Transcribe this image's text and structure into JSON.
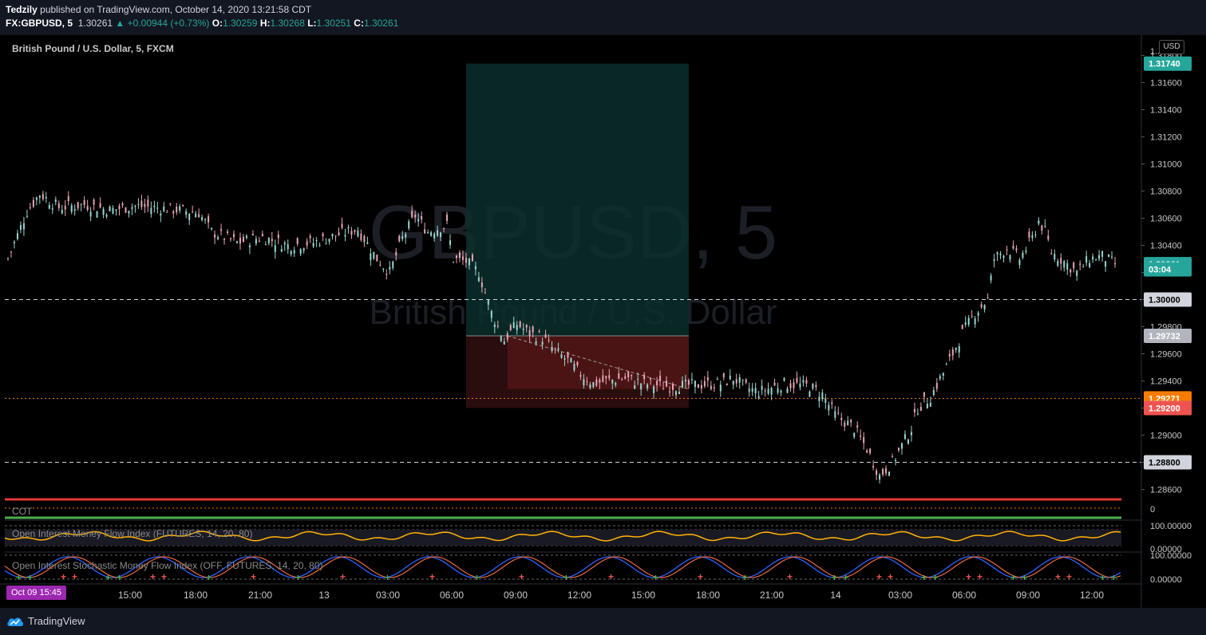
{
  "header": {
    "author": "Tedzily",
    "published_text": "published on TradingView.com, October 14, 2020 13:21:58 CDT",
    "symbol": "FX:GBPUSD, 5",
    "last": "1.30261",
    "change": "▲ +0.00944 (+0.73%)",
    "o_label": "O:",
    "o": "1.30259",
    "h_label": "H:",
    "h": "1.30268",
    "l_label": "L:",
    "l": "1.30251",
    "c_label": "C:",
    "c": "1.30261"
  },
  "legend": {
    "title": "British Pound / U.S. Dollar, 5, FXCM"
  },
  "watermark": {
    "symbol": "GBPUSD, 5",
    "name": "British Pound / U.S. Dollar"
  },
  "currency": "USD",
  "axis_badges": [
    {
      "label": "1.31740",
      "color": "#26a69a",
      "value": 1.3174
    },
    {
      "label": "1.30261",
      "color": "#26a69a",
      "value": 1.30261
    },
    {
      "label": "03:04",
      "color": "#26a69a",
      "value": 1.30223
    },
    {
      "label": "1.30000",
      "color": "#d1d4dc",
      "value": 1.3
    },
    {
      "label": "1.29732",
      "color": "#b2b5be",
      "value": 1.29732
    },
    {
      "label": "1.29271",
      "color": "#f57c00",
      "value": 1.29271
    },
    {
      "label": "1.29200",
      "color": "#ef5350",
      "value": 1.292
    },
    {
      "label": "1.28800",
      "color": "#d1d4dc",
      "value": 1.288
    }
  ],
  "indicators": {
    "cot": {
      "label": "COT",
      "value": "0"
    },
    "oimfi": {
      "label": "Open Interest Money Flow Index (FUTURES, 14, 20, 80)",
      "ticks": [
        "100.00000",
        "0.00000"
      ]
    },
    "oismfi": {
      "label": "Open Interest Stochastic Money Flow Index (OFF, FUTURES, 14, 20, 80)",
      "ticks": [
        "100.00000",
        "0.00000"
      ]
    }
  },
  "date_badge": "Oct 09   15:45",
  "brand": "TradingView",
  "colors": {
    "up": "#26a69a",
    "down": "#ef5350",
    "target_zone": "#0b2f2c",
    "stop_zone": "#4a1414",
    "level_dash": "#d1d4dc",
    "orange_level": "#f57c00"
  },
  "chart_data": {
    "type": "candlestick",
    "title": "British Pound / U.S. Dollar, 5, FXCM",
    "ylim": [
      1.2855,
      1.3195
    ],
    "y_ticks": [
      1.286,
      1.288,
      1.29,
      1.292,
      1.294,
      1.296,
      1.298,
      1.3,
      1.302,
      1.304,
      1.306,
      1.308,
      1.31,
      1.312,
      1.314,
      1.316,
      1.318
    ],
    "y_tick_labels": [
      "1.28600",
      "1.28800",
      "1.29000",
      "1.29200",
      "1.29400",
      "1.29600",
      "1.29800",
      "1.30000",
      "1.30200",
      "1.30400",
      "1.30600",
      "1.30800",
      "1.31000",
      "1.31200",
      "1.31400",
      "1.31600",
      "1.31800"
    ],
    "x_tick_labels": [
      "15:00",
      "18:00",
      "21:00",
      "13",
      "03:00",
      "06:00",
      "09:00",
      "12:00",
      "15:00",
      "18:00",
      "21:00",
      "14",
      "03:00",
      "06:00",
      "09:00",
      "12:00"
    ],
    "close_path": [
      [
        0,
        1.303
      ],
      [
        3,
        1.3065
      ],
      [
        5,
        1.3078
      ],
      [
        8,
        1.3068
      ],
      [
        12,
        1.307
      ],
      [
        16,
        1.3066
      ],
      [
        20,
        1.3069
      ],
      [
        25,
        1.3067
      ],
      [
        30,
        1.3064
      ],
      [
        32,
        1.305
      ],
      [
        36,
        1.3042
      ],
      [
        40,
        1.3046
      ],
      [
        44,
        1.304
      ],
      [
        48,
        1.3042
      ],
      [
        52,
        1.3048
      ],
      [
        55,
        1.3052
      ],
      [
        58,
        1.303
      ],
      [
        60,
        1.302
      ],
      [
        62,
        1.3045
      ],
      [
        64,
        1.3062
      ],
      [
        66,
        1.305
      ],
      [
        69,
        1.3055
      ],
      [
        70,
        1.303
      ],
      [
        72,
        1.3028
      ],
      [
        74,
        1.302
      ],
      [
        76,
        1.299
      ],
      [
        78,
        1.297
      ],
      [
        80,
        1.2982
      ],
      [
        82,
        1.2975
      ],
      [
        84,
        1.2972
      ],
      [
        86,
        1.2962
      ],
      [
        88,
        1.2955
      ],
      [
        90,
        1.2945
      ],
      [
        92,
        1.2938
      ],
      [
        94,
        1.294
      ],
      [
        97,
        1.2942
      ],
      [
        100,
        1.2938
      ],
      [
        104,
        1.2936
      ],
      [
        108,
        1.2937
      ],
      [
        112,
        1.2938
      ],
      [
        114,
        1.2942
      ],
      [
        116,
        1.2935
      ],
      [
        118,
        1.2932
      ],
      [
        122,
        1.2938
      ],
      [
        126,
        1.2936
      ],
      [
        128,
        1.293
      ],
      [
        130,
        1.2915
      ],
      [
        133,
        1.2905
      ],
      [
        135,
        1.289
      ],
      [
        137,
        1.287
      ],
      [
        139,
        1.288
      ],
      [
        140,
        1.2888
      ],
      [
        142,
        1.2905
      ],
      [
        143,
        1.292
      ],
      [
        145,
        1.2928
      ],
      [
        148,
        1.2955
      ],
      [
        150,
        1.2975
      ],
      [
        152,
        1.299
      ],
      [
        154,
        1.3
      ],
      [
        155,
        1.303
      ],
      [
        157,
        1.3038
      ],
      [
        159,
        1.303
      ],
      [
        161,
        1.3045
      ],
      [
        162,
        1.3058
      ],
      [
        163,
        1.305
      ],
      [
        164,
        1.3035
      ],
      [
        166,
        1.3028
      ],
      [
        168,
        1.302
      ],
      [
        170,
        1.303
      ],
      [
        172,
        1.3032
      ],
      [
        174,
        1.3026
      ]
    ],
    "long_position": {
      "entry": 1.29732,
      "target": 1.3174,
      "stop": 1.292,
      "x_start": 72,
      "x_end": 107
    },
    "drawn_levels": [
      1.3,
      1.288
    ],
    "orange_level": 1.29271,
    "red_level_band": [
      1.2866
    ]
  }
}
